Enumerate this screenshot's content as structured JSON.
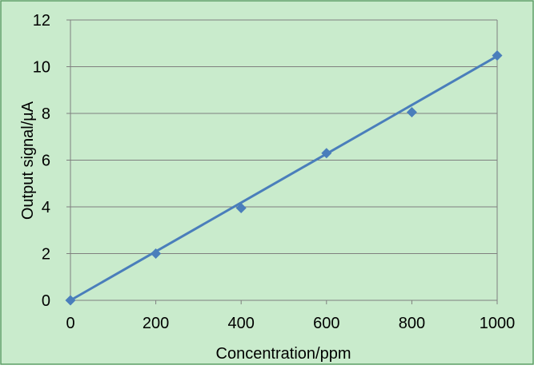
{
  "chart_data": {
    "type": "scatter",
    "title": "",
    "xlabel": "Concentration/ppm",
    "ylabel": "Output signal/µA",
    "xlim": [
      0,
      1000
    ],
    "ylim": [
      0,
      12
    ],
    "x_ticks": [
      0,
      200,
      400,
      600,
      800,
      1000
    ],
    "y_ticks": [
      0,
      2,
      4,
      6,
      8,
      10,
      12
    ],
    "grid": "horizontal",
    "legend": "none",
    "series": [
      {
        "x": [
          0,
          200,
          400,
          600,
          800,
          1000
        ],
        "y": [
          0,
          2.0,
          3.95,
          6.3,
          8.05,
          10.48
        ],
        "marker": "diamond",
        "line": "linear-fit",
        "color": "#4a7ebb"
      }
    ],
    "trendline": {
      "x": [
        0,
        1000
      ],
      "y": [
        0.0,
        10.45
      ],
      "color": "#4a7ebb"
    },
    "colors": {
      "plot_background": "#c9ebcc",
      "chart_border": "#5a9e64",
      "gridline": "#7f7f7f",
      "axis": "#7f7f7f"
    }
  }
}
